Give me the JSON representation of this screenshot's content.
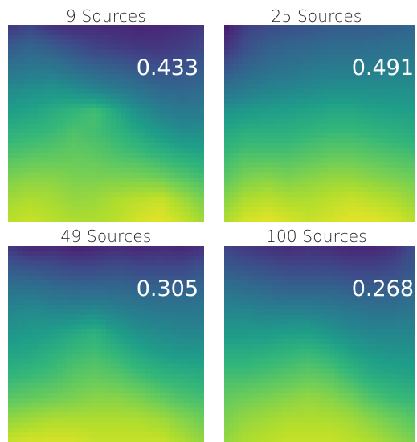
{
  "chart_data": [
    {
      "type": "heatmap",
      "title": "9 Sources",
      "score": "0.433",
      "colormap": "viridis",
      "value_range": [
        0,
        1
      ],
      "values": [
        [
          0.15,
          0.2,
          0.14,
          0.12,
          0.12,
          0.11,
          0.1,
          0.11,
          0.13,
          0.17
        ],
        [
          0.28,
          0.32,
          0.29,
          0.24,
          0.2,
          0.18,
          0.16,
          0.16,
          0.18,
          0.22
        ],
        [
          0.38,
          0.4,
          0.4,
          0.36,
          0.32,
          0.3,
          0.27,
          0.25,
          0.26,
          0.29
        ],
        [
          0.48,
          0.5,
          0.52,
          0.5,
          0.46,
          0.42,
          0.38,
          0.34,
          0.33,
          0.35
        ],
        [
          0.56,
          0.58,
          0.62,
          0.66,
          0.7,
          0.6,
          0.5,
          0.44,
          0.41,
          0.42
        ],
        [
          0.64,
          0.66,
          0.68,
          0.72,
          0.7,
          0.66,
          0.6,
          0.54,
          0.5,
          0.5
        ],
        [
          0.72,
          0.74,
          0.75,
          0.76,
          0.75,
          0.72,
          0.7,
          0.66,
          0.62,
          0.6
        ],
        [
          0.8,
          0.82,
          0.82,
          0.8,
          0.8,
          0.8,
          0.8,
          0.78,
          0.74,
          0.7
        ],
        [
          0.86,
          0.88,
          0.87,
          0.84,
          0.85,
          0.88,
          0.9,
          0.92,
          0.86,
          0.8
        ],
        [
          0.9,
          0.92,
          0.9,
          0.88,
          0.88,
          0.9,
          0.94,
          0.96,
          0.92,
          0.86
        ]
      ]
    },
    {
      "type": "heatmap",
      "title": "25 Sources",
      "score": "0.491",
      "colormap": "viridis",
      "value_range": [
        0,
        1
      ],
      "values": [
        [
          0.06,
          0.18,
          0.22,
          0.24,
          0.26,
          0.28,
          0.28,
          0.28,
          0.3,
          0.32
        ],
        [
          0.14,
          0.24,
          0.3,
          0.32,
          0.33,
          0.35,
          0.35,
          0.36,
          0.37,
          0.38
        ],
        [
          0.26,
          0.32,
          0.36,
          0.38,
          0.4,
          0.42,
          0.42,
          0.42,
          0.43,
          0.44
        ],
        [
          0.38,
          0.42,
          0.45,
          0.47,
          0.48,
          0.5,
          0.5,
          0.5,
          0.5,
          0.5
        ],
        [
          0.52,
          0.54,
          0.56,
          0.57,
          0.58,
          0.6,
          0.6,
          0.58,
          0.57,
          0.56
        ],
        [
          0.6,
          0.64,
          0.64,
          0.64,
          0.66,
          0.68,
          0.68,
          0.66,
          0.64,
          0.62
        ],
        [
          0.68,
          0.72,
          0.72,
          0.72,
          0.74,
          0.76,
          0.76,
          0.74,
          0.72,
          0.7
        ],
        [
          0.74,
          0.8,
          0.82,
          0.8,
          0.82,
          0.84,
          0.84,
          0.82,
          0.8,
          0.78
        ],
        [
          0.82,
          0.88,
          0.9,
          0.88,
          0.88,
          0.9,
          0.92,
          0.9,
          0.88,
          0.84
        ],
        [
          0.88,
          0.94,
          0.96,
          0.94,
          0.92,
          0.94,
          0.96,
          0.96,
          0.94,
          0.9
        ]
      ]
    },
    {
      "type": "heatmap",
      "title": "49 Sources",
      "score": "0.305",
      "colormap": "viridis",
      "value_range": [
        0,
        1
      ],
      "values": [
        [
          0.16,
          0.1,
          0.12,
          0.08,
          0.1,
          0.12,
          0.1,
          0.12,
          0.1,
          0.14
        ],
        [
          0.28,
          0.26,
          0.24,
          0.22,
          0.22,
          0.24,
          0.22,
          0.22,
          0.22,
          0.26
        ],
        [
          0.38,
          0.38,
          0.36,
          0.34,
          0.34,
          0.34,
          0.32,
          0.32,
          0.32,
          0.34
        ],
        [
          0.46,
          0.48,
          0.46,
          0.46,
          0.48,
          0.44,
          0.42,
          0.4,
          0.4,
          0.4
        ],
        [
          0.52,
          0.54,
          0.56,
          0.6,
          0.64,
          0.56,
          0.5,
          0.48,
          0.46,
          0.46
        ],
        [
          0.58,
          0.6,
          0.64,
          0.68,
          0.7,
          0.66,
          0.6,
          0.56,
          0.54,
          0.54
        ],
        [
          0.66,
          0.68,
          0.7,
          0.74,
          0.76,
          0.74,
          0.7,
          0.66,
          0.64,
          0.62
        ],
        [
          0.74,
          0.76,
          0.78,
          0.8,
          0.82,
          0.82,
          0.8,
          0.76,
          0.72,
          0.7
        ],
        [
          0.84,
          0.86,
          0.88,
          0.88,
          0.88,
          0.88,
          0.88,
          0.86,
          0.82,
          0.78
        ],
        [
          0.92,
          0.94,
          0.94,
          0.94,
          0.92,
          0.92,
          0.92,
          0.92,
          0.88,
          0.84
        ]
      ]
    },
    {
      "type": "heatmap",
      "title": "100 Sources",
      "score": "0.268",
      "colormap": "viridis",
      "value_range": [
        0,
        1
      ],
      "values": [
        [
          0.2,
          0.16,
          0.14,
          0.12,
          0.14,
          0.12,
          0.1,
          0.1,
          0.14,
          0.24
        ],
        [
          0.28,
          0.26,
          0.24,
          0.22,
          0.22,
          0.22,
          0.2,
          0.2,
          0.22,
          0.28
        ],
        [
          0.38,
          0.36,
          0.34,
          0.32,
          0.32,
          0.32,
          0.3,
          0.3,
          0.3,
          0.34
        ],
        [
          0.46,
          0.46,
          0.44,
          0.44,
          0.44,
          0.42,
          0.4,
          0.38,
          0.38,
          0.4
        ],
        [
          0.54,
          0.54,
          0.54,
          0.56,
          0.56,
          0.52,
          0.48,
          0.46,
          0.46,
          0.46
        ],
        [
          0.62,
          0.62,
          0.64,
          0.66,
          0.68,
          0.64,
          0.58,
          0.54,
          0.52,
          0.52
        ],
        [
          0.7,
          0.7,
          0.72,
          0.74,
          0.76,
          0.74,
          0.68,
          0.62,
          0.6,
          0.58
        ],
        [
          0.76,
          0.78,
          0.8,
          0.82,
          0.84,
          0.82,
          0.78,
          0.72,
          0.68,
          0.66
        ],
        [
          0.8,
          0.84,
          0.86,
          0.88,
          0.88,
          0.88,
          0.86,
          0.82,
          0.78,
          0.74
        ],
        [
          0.84,
          0.88,
          0.9,
          0.92,
          0.92,
          0.92,
          0.9,
          0.88,
          0.84,
          0.8
        ]
      ]
    }
  ]
}
